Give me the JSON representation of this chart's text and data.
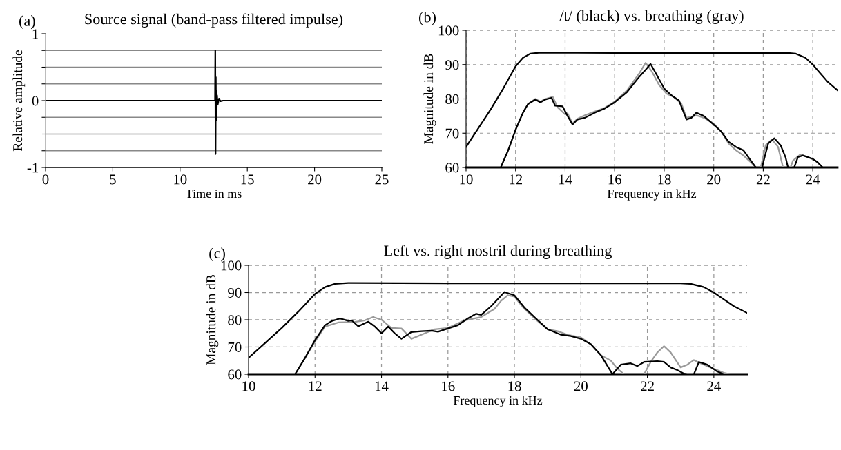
{
  "chart_data": [
    {
      "type": "line",
      "title": "Source signal (band-pass filtered impulse)",
      "annotations": [
        "(a)"
      ],
      "xlabel": "Time in ms",
      "ylabel": "Relative amplitude",
      "xlim": [
        0,
        25
      ],
      "ylim": [
        -1,
        1
      ],
      "xticks": [
        0,
        5,
        10,
        15,
        20,
        25
      ],
      "yticks": [
        -1,
        {
          "value": -0.75,
          "label": null
        },
        {
          "value": -0.5,
          "label": null
        },
        {
          "value": -0.25,
          "label": null
        },
        0,
        {
          "value": 0.25,
          "label": null
        },
        {
          "value": 0.5,
          "label": null
        },
        {
          "value": 0.75,
          "label": null
        },
        1
      ],
      "grid": "y",
      "line_style": "solid",
      "series": [
        {
          "color": "#000000",
          "x": [
            0,
            12.6,
            12.62,
            12.64,
            12.66,
            12.68,
            12.7,
            12.72,
            12.75,
            12.8,
            12.9,
            13.0,
            13.2,
            25
          ],
          "values": [
            0,
            0,
            0.75,
            -0.8,
            0.35,
            -0.3,
            0.15,
            -0.15,
            0.08,
            -0.06,
            0.03,
            -0.01,
            0,
            0
          ]
        }
      ]
    },
    {
      "type": "line",
      "title": "/t/ (black) vs. breathing (gray)",
      "annotations": [
        "(b)"
      ],
      "xlabel": "Frequency in kHz",
      "ylabel": "Magnitude in dB",
      "xlim": [
        10,
        25
      ],
      "ylim": [
        60,
        100
      ],
      "xticks": [
        10,
        12,
        14,
        16,
        18,
        20,
        22,
        24
      ],
      "yticks": [
        60,
        70,
        80,
        90,
        100
      ],
      "grid": true,
      "line_style": "solid",
      "series": [
        {
          "color": "#000000",
          "x": [
            10,
            10.5,
            11,
            11.5,
            12,
            12.3,
            12.6,
            13,
            16,
            20,
            23,
            23.3,
            23.7,
            24,
            24.3,
            24.6,
            25
          ],
          "values": [
            66,
            71.5,
            77,
            83,
            89.5,
            92,
            93.2,
            93.5,
            93.4,
            93.4,
            93.4,
            93.2,
            92,
            90,
            87.5,
            85,
            82.5
          ]
        },
        {
          "color": "#999999",
          "x": [
            11.4,
            11.7,
            12.0,
            12.3,
            12.5,
            12.8,
            13.0,
            13.2,
            13.5,
            13.7,
            14.0,
            14.1,
            14.3,
            14.5,
            14.8,
            15.2,
            15.6,
            16,
            16.5,
            17,
            17.25,
            17.5,
            17.8,
            18.1,
            18.4,
            18.7,
            18.9,
            19.1,
            19.3,
            19.6,
            20,
            20.3,
            20.6,
            20.9,
            21.2,
            21.5,
            21.7,
            21.8,
            21.9,
            22.1,
            22.35,
            22.6,
            22.8,
            22.9,
            23.1,
            23.2,
            23.5,
            23.8,
            24.1,
            24.4
          ],
          "values": [
            60,
            65,
            71,
            76,
            78.5,
            80,
            79.2,
            80,
            80.6,
            77.5,
            75.5,
            75.8,
            72.8,
            74.2,
            75.2,
            76.3,
            77.4,
            79.2,
            82.5,
            87.5,
            90.5,
            88,
            84,
            81.5,
            80.5,
            78.5,
            74.5,
            74.8,
            75.2,
            74.5,
            72.8,
            70.5,
            67,
            65,
            63.5,
            61.5,
            60,
            null,
            60,
            66.5,
            68.2,
            66,
            60,
            null,
            60,
            62,
            63.8,
            63,
            62,
            60
          ]
        },
        {
          "color": "#000000",
          "x": [
            11.4,
            11.7,
            12.0,
            12.3,
            12.5,
            12.8,
            13.0,
            13.2,
            13.45,
            13.6,
            13.9,
            14.1,
            14.3,
            14.5,
            14.8,
            15.2,
            15.6,
            16,
            16.5,
            17,
            17.25,
            17.45,
            17.7,
            18,
            18.3,
            18.6,
            18.9,
            19.1,
            19.3,
            19.6,
            20,
            20.3,
            20.6,
            20.9,
            21.2,
            21.5,
            21.7,
            21.8,
            21.95,
            22.2,
            22.45,
            22.7,
            22.9,
            23.0,
            23.1,
            23.25,
            23.4,
            23.6,
            24.0,
            24.2,
            24.4
          ],
          "values": [
            60,
            65,
            71,
            76,
            78.5,
            79.8,
            79,
            79.8,
            80.3,
            78,
            77.8,
            75,
            72.5,
            74,
            74.5,
            76,
            77.2,
            79,
            82,
            86.5,
            88.5,
            90.2,
            87,
            83,
            81,
            79.5,
            74,
            74.5,
            76,
            75,
            72.5,
            70.5,
            67.5,
            66,
            65,
            62,
            60,
            null,
            60,
            67,
            68.5,
            66.5,
            63,
            60,
            null,
            60,
            63,
            63.5,
            62.5,
            61.5,
            60
          ]
        }
      ]
    },
    {
      "type": "line",
      "title": "Left vs. right nostril during breathing",
      "annotations": [
        "(c)"
      ],
      "xlabel": "Frequency in kHz",
      "ylabel": "Magnitude in dB",
      "xlim": [
        10,
        25
      ],
      "ylim": [
        60,
        100
      ],
      "xticks": [
        10,
        12,
        14,
        16,
        18,
        20,
        22,
        24
      ],
      "yticks": [
        60,
        70,
        80,
        90,
        100
      ],
      "grid": true,
      "line_style": "solid",
      "series": [
        {
          "color": "#000000",
          "x": [
            10,
            10.5,
            11,
            11.5,
            12,
            12.3,
            12.6,
            13,
            16,
            20,
            23,
            23.3,
            23.7,
            24,
            24.3,
            24.6,
            25
          ],
          "values": [
            66,
            71.5,
            77,
            83,
            89.5,
            92,
            93.2,
            93.5,
            93.4,
            93.4,
            93.4,
            93.2,
            92,
            90,
            87.5,
            85,
            82.5
          ]
        },
        {
          "color": "#999999",
          "x": [
            11.4,
            12,
            12.3,
            12.7,
            13.2,
            13.5,
            13.75,
            14.0,
            14.3,
            14.6,
            14.9,
            15.3,
            15.6,
            16,
            16.5,
            17,
            17.4,
            17.6,
            17.8,
            18.0,
            18.3,
            18.7,
            19,
            19.3,
            19.6,
            20,
            20.3,
            20.6,
            20.9,
            21.1,
            21.3,
            21.6,
            21.9,
            22.1,
            22.3,
            22.5,
            22.7,
            23.0,
            23.2,
            23.4,
            23.6,
            24,
            24.3,
            24.5
          ],
          "values": [
            60,
            72,
            77.5,
            79,
            79.2,
            79.8,
            81,
            80,
            77,
            76.8,
            73,
            75,
            76.5,
            77,
            79.8,
            81,
            84,
            87,
            89,
            88.5,
            84,
            79.5,
            76.5,
            75.8,
            74.5,
            73.5,
            71,
            67,
            65,
            62,
            60,
            null,
            60,
            64.5,
            68,
            70.3,
            68,
            62.5,
            63.5,
            65.2,
            64,
            62,
            60.5,
            60
          ]
        },
        {
          "color": "#000000",
          "x": [
            11.4,
            11.7,
            12,
            12.3,
            12.5,
            12.75,
            13,
            13.1,
            13.3,
            13.6,
            13.8,
            14.0,
            14.2,
            14.4,
            14.6,
            14.9,
            15.2,
            15.5,
            15.7,
            16,
            16.3,
            16.6,
            16.85,
            17.0,
            17.3,
            17.7,
            18.0,
            18.3,
            18.6,
            19,
            19.4,
            19.7,
            20.0,
            20.3,
            20.6,
            20.8,
            20.95,
            21.2,
            21.5,
            21.7,
            21.9,
            22.3,
            22.5,
            22.7,
            22.9,
            23.1,
            23.2,
            23.3,
            23.4,
            23.55,
            23.8,
            24.1,
            24.3
          ],
          "values": [
            60,
            66,
            72.5,
            78,
            79.5,
            80.5,
            79.6,
            79.8,
            77.6,
            79.3,
            77.5,
            75,
            77.5,
            75,
            73,
            75.5,
            75.8,
            76,
            75.6,
            76.8,
            78,
            80.5,
            82.2,
            81.8,
            85,
            90.2,
            89,
            84.5,
            81,
            76.5,
            74.5,
            74,
            73,
            71,
            67,
            63,
            60,
            63.5,
            64,
            63,
            64.5,
            64.8,
            64.5,
            62.5,
            61.5,
            60.2,
            60,
            null,
            60,
            64.5,
            63.5,
            61,
            60
          ]
        }
      ]
    }
  ]
}
